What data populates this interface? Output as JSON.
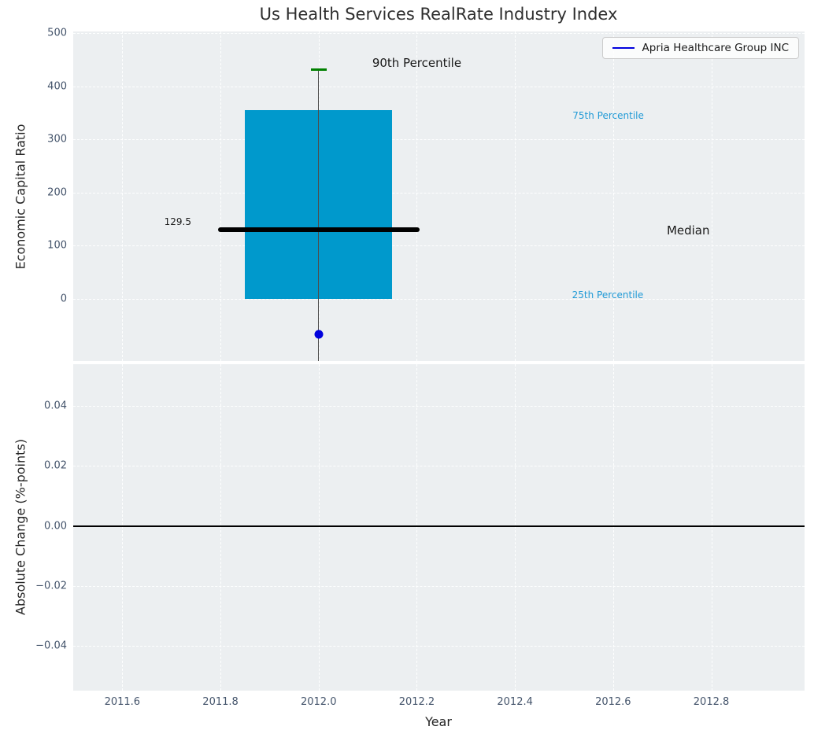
{
  "figure": {
    "background": "#ffffff",
    "axes_background": "#eceff1"
  },
  "chart_data": [
    {
      "type": "boxplot",
      "title": "Us Health Services RealRate Industry Index",
      "ylabel": "Economic Capital Ratio",
      "xlim": [
        2011.5,
        2012.99
      ],
      "ylim": [
        -117,
        503
      ],
      "grid": true,
      "ytick_values": [
        0,
        100,
        200,
        300,
        400,
        500
      ],
      "ytick_labels": [
        "0",
        "100",
        "200",
        "300",
        "400",
        "500"
      ],
      "legend": {
        "label": "Apria Healthcare Group INC",
        "line_color": "#0101dd",
        "position": "upper right"
      },
      "box": {
        "x": 2012.0,
        "box_width_years": 0.3,
        "median_width_years": 0.41,
        "cap_width_years": 0.032,
        "p90": 431,
        "p75": 355,
        "median": 129.5,
        "p25": 0,
        "whisker_low_clipped_below_axis": true,
        "box_color": "#0099cc",
        "median_color": "#000000",
        "cap_color": "#008000"
      },
      "company_point": {
        "x": 2012.0,
        "y": -66,
        "color": "#0101dd"
      },
      "annotations": [
        {
          "text": "90th Percentile",
          "x": 2012.2,
          "y": 444,
          "color": "#1a1a1a",
          "size": 15
        },
        {
          "text": "75th Percentile",
          "x": 2012.59,
          "y": 345,
          "color": "#219ad6",
          "size": 12
        },
        {
          "text": "129.5",
          "x": 2011.713,
          "y": 145,
          "color": "#1a1a1a",
          "size": 12
        },
        {
          "text": "Median",
          "x": 2012.753,
          "y": 129,
          "color": "#1a1a1a",
          "size": 15
        },
        {
          "text": "25th Percentile",
          "x": 2012.589,
          "y": 7,
          "color": "#219ad6",
          "size": 12
        }
      ]
    },
    {
      "type": "line",
      "ylabel": "Absolute Change (%-points)",
      "xlabel": "Year",
      "xlim": [
        2011.5,
        2012.99
      ],
      "ylim": [
        -0.055,
        0.054
      ],
      "grid": true,
      "ytick_values": [
        0.04,
        0.02,
        0.0,
        -0.02,
        -0.04
      ],
      "ytick_labels": [
        "0.04",
        "0.02",
        "0.00",
        "−0.02",
        "−0.04"
      ],
      "xtick_values": [
        2011.6,
        2011.8,
        2012.0,
        2012.2,
        2012.4,
        2012.6,
        2012.8
      ],
      "xtick_labels": [
        "2011.6",
        "2011.8",
        "2012.0",
        "2012.2",
        "2012.4",
        "2012.6",
        "2012.8"
      ],
      "zero_line_y": 0.0,
      "series": []
    }
  ]
}
